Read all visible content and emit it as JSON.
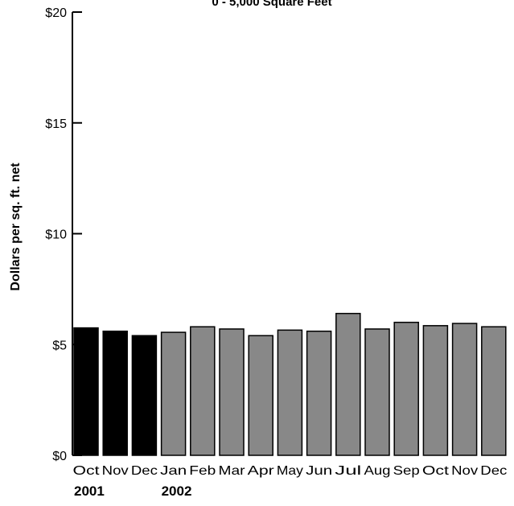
{
  "chart_data": {
    "type": "bar",
    "title": "0 - 5,000 Square Feet",
    "ylabel": "Dollars per sq. ft. net",
    "xlabel": "",
    "ylim": [
      0,
      20
    ],
    "y_ticks": [
      "$0",
      "$5",
      "$10",
      "$15",
      "$20"
    ],
    "y_tick_values": [
      0,
      5,
      10,
      15,
      20
    ],
    "categories": [
      "Oct",
      "Nov",
      "Dec",
      "Jan",
      "Feb",
      "Mar",
      "Apr",
      "May",
      "Jun",
      "Jul",
      "Aug",
      "Sep",
      "Oct",
      "Nov",
      "Dec"
    ],
    "values": [
      5.75,
      5.6,
      5.4,
      5.55,
      5.8,
      5.7,
      5.4,
      5.65,
      5.6,
      6.4,
      5.7,
      6.0,
      5.85,
      5.95,
      5.8
    ],
    "bar_colors": [
      "#000000",
      "#000000",
      "#000000",
      "#888888",
      "#888888",
      "#888888",
      "#888888",
      "#888888",
      "#888888",
      "#888888",
      "#888888",
      "#888888",
      "#888888",
      "#888888",
      "#888888"
    ],
    "year_labels": [
      {
        "label": "2001",
        "start_index": 0
      },
      {
        "label": "2002",
        "start_index": 3
      }
    ],
    "grid": false,
    "legend": "none"
  }
}
